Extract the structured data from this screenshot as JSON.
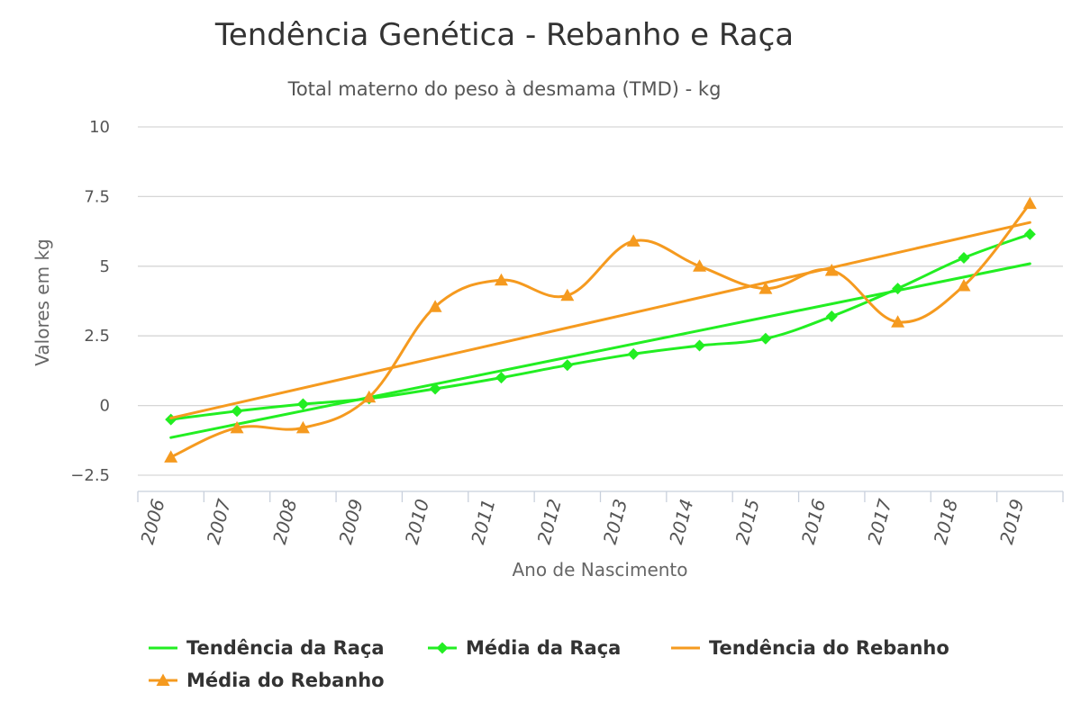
{
  "chart_data": {
    "type": "line",
    "title": "Tendência Genética - Rebanho e Raça",
    "subtitle": "Total materno do peso à desmama (TMD) - kg",
    "xlabel": "Ano de Nascimento",
    "ylabel": "Valores em kg",
    "categories": [
      "2006",
      "2007",
      "2008",
      "2009",
      "2010",
      "2011",
      "2012",
      "2013",
      "2014",
      "2015",
      "2016",
      "2017",
      "2018",
      "2019"
    ],
    "yticks": [
      "−2.5",
      "0",
      "2.5",
      "5",
      "7.5",
      "10"
    ],
    "ylim": [
      -2.5,
      10
    ],
    "grid": true,
    "legend_position": "bottom",
    "series": [
      {
        "name": "Tendência da Raça",
        "kind": "trend",
        "color": "#22ee22",
        "marker": "none",
        "values": [
          -1.15,
          -0.67,
          -0.19,
          0.29,
          0.77,
          1.25,
          1.73,
          2.21,
          2.69,
          3.17,
          3.65,
          4.13,
          4.61,
          5.09
        ]
      },
      {
        "name": "Média da Raça",
        "kind": "line",
        "color": "#22ee22",
        "marker": "diamond",
        "values": [
          -0.5,
          -0.2,
          0.05,
          0.25,
          0.6,
          1.0,
          1.45,
          1.85,
          2.15,
          2.4,
          3.2,
          4.2,
          5.3,
          6.15
        ]
      },
      {
        "name": "Tendência do Rebanho",
        "kind": "trend",
        "color": "#f59a1f",
        "marker": "none",
        "values": [
          -0.45,
          0.09,
          0.63,
          1.17,
          1.71,
          2.25,
          2.79,
          3.33,
          3.87,
          4.41,
          4.95,
          5.49,
          6.03,
          6.57
        ]
      },
      {
        "name": "Média do Rebanho",
        "kind": "line",
        "color": "#f59a1f",
        "marker": "triangle",
        "values": [
          -1.85,
          -0.8,
          -0.8,
          0.3,
          3.55,
          4.5,
          3.95,
          5.9,
          5.0,
          4.2,
          4.85,
          3.0,
          4.3,
          7.25
        ]
      }
    ]
  }
}
